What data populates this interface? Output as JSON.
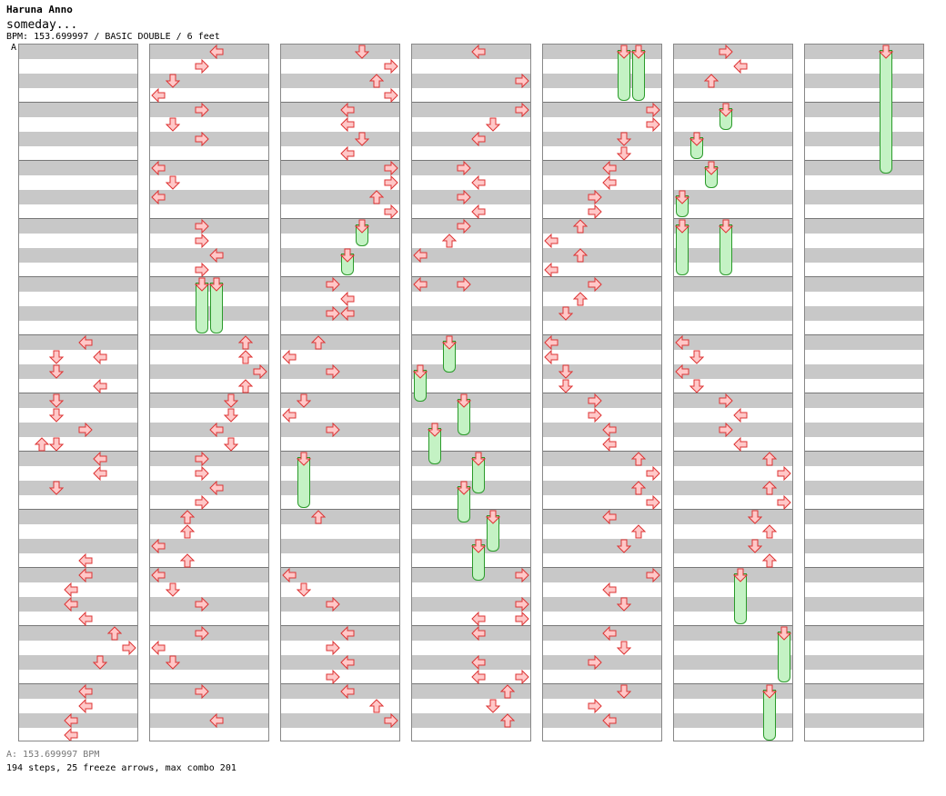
{
  "header": {
    "artist": "Haruna Anno",
    "title": "someday...",
    "info": "BPM: 153.699997 / BASIC DOUBLE / 6 feet"
  },
  "bpm_marker": "A",
  "footer": {
    "bpm_line": "A: 153.699997 BPM",
    "stats": "194 steps, 25 freeze arrows, max combo 201"
  },
  "colors": {
    "arrow_fill": "#ffc8c8",
    "arrow_stroke": "#dd3333",
    "freeze_fill": "#c4f2c4",
    "freeze_stroke": "#2a9a2a"
  },
  "chart": {
    "lanes": 8,
    "beats_per_column": 48,
    "beats_per_measure": 4,
    "columns": [
      {
        "notes": [
          [
            5,
            20,
            "L"
          ],
          [
            3,
            21,
            "D"
          ],
          [
            6,
            21,
            "L"
          ],
          [
            3,
            22,
            "D"
          ],
          [
            6,
            23,
            "L"
          ],
          [
            3,
            24,
            "D"
          ],
          [
            3,
            25,
            "D"
          ],
          [
            5,
            26,
            "R"
          ],
          [
            2,
            27,
            "U"
          ],
          [
            3,
            27,
            "D"
          ],
          [
            6,
            28,
            "L"
          ],
          [
            6,
            29,
            "L"
          ],
          [
            3,
            30,
            "D"
          ],
          [
            5,
            35,
            "L"
          ],
          [
            5,
            36,
            "L"
          ],
          [
            4,
            37,
            "L"
          ],
          [
            4,
            38,
            "L"
          ],
          [
            5,
            39,
            "L"
          ],
          [
            7,
            40,
            "U"
          ],
          [
            8,
            41,
            "R"
          ],
          [
            6,
            42,
            "D"
          ],
          [
            5,
            44,
            "L"
          ],
          [
            5,
            45,
            "L"
          ],
          [
            4,
            46,
            "L"
          ],
          [
            4,
            47,
            "L"
          ]
        ]
      },
      {
        "notes": [
          [
            5,
            0,
            "L"
          ],
          [
            4,
            1,
            "R"
          ],
          [
            2,
            2,
            "D"
          ],
          [
            1,
            3,
            "L"
          ],
          [
            4,
            4,
            "R"
          ],
          [
            2,
            5,
            "D"
          ],
          [
            4,
            6,
            "R"
          ],
          [
            1,
            8,
            "L"
          ],
          [
            2,
            9,
            "D"
          ],
          [
            1,
            10,
            "L"
          ],
          [
            4,
            12,
            "R"
          ],
          [
            4,
            13,
            "R"
          ],
          [
            5,
            14,
            "L"
          ],
          [
            4,
            15,
            "R"
          ],
          [
            7,
            20,
            "U"
          ],
          [
            7,
            21,
            "U"
          ],
          [
            8,
            22,
            "R"
          ],
          [
            7,
            23,
            "U"
          ],
          [
            6,
            24,
            "D"
          ],
          [
            6,
            25,
            "D"
          ],
          [
            5,
            26,
            "L"
          ],
          [
            6,
            27,
            "D"
          ],
          [
            4,
            28,
            "R"
          ],
          [
            4,
            29,
            "R"
          ],
          [
            5,
            30,
            "L"
          ],
          [
            4,
            31,
            "R"
          ],
          [
            3,
            32,
            "U"
          ],
          [
            3,
            33,
            "U"
          ],
          [
            1,
            34,
            "L"
          ],
          [
            3,
            35,
            "U"
          ],
          [
            1,
            36,
            "L"
          ],
          [
            2,
            37,
            "D"
          ],
          [
            4,
            38,
            "R"
          ],
          [
            4,
            40,
            "R"
          ],
          [
            1,
            41,
            "L"
          ],
          [
            2,
            42,
            "D"
          ],
          [
            4,
            44,
            "R"
          ],
          [
            5,
            46,
            "L"
          ]
        ],
        "freezes": [
          [
            4,
            16,
            19.5
          ],
          [
            5,
            16,
            19.5
          ]
        ]
      },
      {
        "notes": [
          [
            6,
            0,
            "D"
          ],
          [
            8,
            1,
            "R"
          ],
          [
            7,
            2,
            "U"
          ],
          [
            8,
            3,
            "R"
          ],
          [
            5,
            4,
            "L"
          ],
          [
            5,
            5,
            "L"
          ],
          [
            6,
            6,
            "D"
          ],
          [
            5,
            7,
            "L"
          ],
          [
            8,
            8,
            "R"
          ],
          [
            8,
            9,
            "R"
          ],
          [
            7,
            10,
            "U"
          ],
          [
            8,
            11,
            "R"
          ],
          [
            4,
            16,
            "R"
          ],
          [
            5,
            17,
            "L"
          ],
          [
            4,
            18,
            "R"
          ],
          [
            5,
            18,
            "L"
          ],
          [
            3,
            20,
            "U"
          ],
          [
            1,
            21,
            "L"
          ],
          [
            4,
            22,
            "R"
          ],
          [
            2,
            24,
            "D"
          ],
          [
            1,
            25,
            "L"
          ],
          [
            4,
            26,
            "R"
          ],
          [
            3,
            32,
            "U"
          ],
          [
            1,
            36,
            "L"
          ],
          [
            2,
            37,
            "D"
          ],
          [
            4,
            38,
            "R"
          ],
          [
            5,
            40,
            "L"
          ],
          [
            4,
            41,
            "R"
          ],
          [
            5,
            42,
            "L"
          ],
          [
            4,
            43,
            "R"
          ],
          [
            5,
            44,
            "L"
          ],
          [
            7,
            45,
            "U"
          ],
          [
            8,
            46,
            "R"
          ]
        ],
        "freezes": [
          [
            6,
            12,
            13.5
          ],
          [
            5,
            14,
            15.5
          ],
          [
            2,
            28,
            31.5
          ]
        ]
      },
      {
        "notes": [
          [
            5,
            0,
            "L"
          ],
          [
            8,
            2,
            "R"
          ],
          [
            8,
            4,
            "R"
          ],
          [
            6,
            5,
            "D"
          ],
          [
            5,
            6,
            "L"
          ],
          [
            4,
            8,
            "R"
          ],
          [
            5,
            9,
            "L"
          ],
          [
            4,
            10,
            "R"
          ],
          [
            5,
            11,
            "L"
          ],
          [
            4,
            12,
            "R"
          ],
          [
            3,
            13,
            "U"
          ],
          [
            1,
            14,
            "L"
          ],
          [
            1,
            16,
            "L"
          ],
          [
            4,
            16,
            "R"
          ],
          [
            8,
            36,
            "R"
          ],
          [
            8,
            38,
            "R"
          ],
          [
            5,
            39,
            "L"
          ],
          [
            8,
            39,
            "R"
          ],
          [
            5,
            40,
            "L"
          ],
          [
            5,
            42,
            "L"
          ],
          [
            5,
            43,
            "L"
          ],
          [
            8,
            43,
            "R"
          ],
          [
            7,
            44,
            "U"
          ],
          [
            6,
            45,
            "D"
          ],
          [
            7,
            46,
            "U"
          ]
        ],
        "freezes": [
          [
            3,
            20,
            22.2
          ],
          [
            1,
            22,
            24.2
          ],
          [
            4,
            24,
            26.5
          ],
          [
            2,
            26,
            28.5
          ],
          [
            5,
            28,
            30.5
          ],
          [
            4,
            30,
            32.5
          ],
          [
            6,
            32,
            34.5
          ],
          [
            5,
            34,
            36.5
          ]
        ]
      },
      {
        "notes": [
          [
            8,
            4,
            "R"
          ],
          [
            8,
            5,
            "R"
          ],
          [
            6,
            6,
            "D"
          ],
          [
            6,
            7,
            "D"
          ],
          [
            5,
            8,
            "L"
          ],
          [
            5,
            9,
            "L"
          ],
          [
            4,
            10,
            "R"
          ],
          [
            4,
            11,
            "R"
          ],
          [
            3,
            12,
            "U"
          ],
          [
            1,
            13,
            "L"
          ],
          [
            3,
            14,
            "U"
          ],
          [
            1,
            15,
            "L"
          ],
          [
            4,
            16,
            "R"
          ],
          [
            3,
            17,
            "U"
          ],
          [
            2,
            18,
            "D"
          ],
          [
            1,
            20,
            "L"
          ],
          [
            1,
            21,
            "L"
          ],
          [
            2,
            22,
            "D"
          ],
          [
            2,
            23,
            "D"
          ],
          [
            4,
            24,
            "R"
          ],
          [
            4,
            25,
            "R"
          ],
          [
            5,
            26,
            "L"
          ],
          [
            5,
            27,
            "L"
          ],
          [
            7,
            28,
            "U"
          ],
          [
            8,
            29,
            "R"
          ],
          [
            7,
            30,
            "U"
          ],
          [
            8,
            31,
            "R"
          ],
          [
            5,
            32,
            "L"
          ],
          [
            7,
            33,
            "U"
          ],
          [
            6,
            34,
            "D"
          ],
          [
            8,
            36,
            "R"
          ],
          [
            5,
            37,
            "L"
          ],
          [
            6,
            38,
            "D"
          ],
          [
            5,
            40,
            "L"
          ],
          [
            6,
            41,
            "D"
          ],
          [
            4,
            42,
            "R"
          ],
          [
            6,
            44,
            "D"
          ],
          [
            4,
            45,
            "R"
          ],
          [
            5,
            46,
            "L"
          ]
        ],
        "freezes": [
          [
            6,
            0,
            3.5
          ],
          [
            7,
            0,
            3.5
          ]
        ]
      },
      {
        "notes": [
          [
            4,
            0,
            "R"
          ],
          [
            5,
            1,
            "L"
          ],
          [
            3,
            2,
            "U"
          ],
          [
            1,
            20,
            "L"
          ],
          [
            2,
            21,
            "D"
          ],
          [
            1,
            22,
            "L"
          ],
          [
            2,
            23,
            "D"
          ],
          [
            4,
            24,
            "R"
          ],
          [
            5,
            25,
            "L"
          ],
          [
            4,
            26,
            "R"
          ],
          [
            5,
            27,
            "L"
          ],
          [
            7,
            28,
            "U"
          ],
          [
            8,
            29,
            "R"
          ],
          [
            7,
            30,
            "U"
          ],
          [
            8,
            31,
            "R"
          ],
          [
            6,
            32,
            "D"
          ],
          [
            7,
            33,
            "U"
          ],
          [
            6,
            34,
            "D"
          ],
          [
            7,
            35,
            "U"
          ]
        ],
        "freezes": [
          [
            4,
            4,
            5.5
          ],
          [
            2,
            6,
            7.5
          ],
          [
            3,
            8,
            9.5
          ],
          [
            1,
            10,
            11.5
          ],
          [
            1,
            12,
            15.5
          ],
          [
            4,
            12,
            15.5
          ],
          [
            5,
            36,
            39.5
          ],
          [
            8,
            40,
            43.5
          ],
          [
            7,
            44,
            47.5
          ]
        ]
      },
      {
        "notes": [],
        "freezes": [
          [
            6,
            0,
            8.5
          ]
        ]
      }
    ]
  }
}
